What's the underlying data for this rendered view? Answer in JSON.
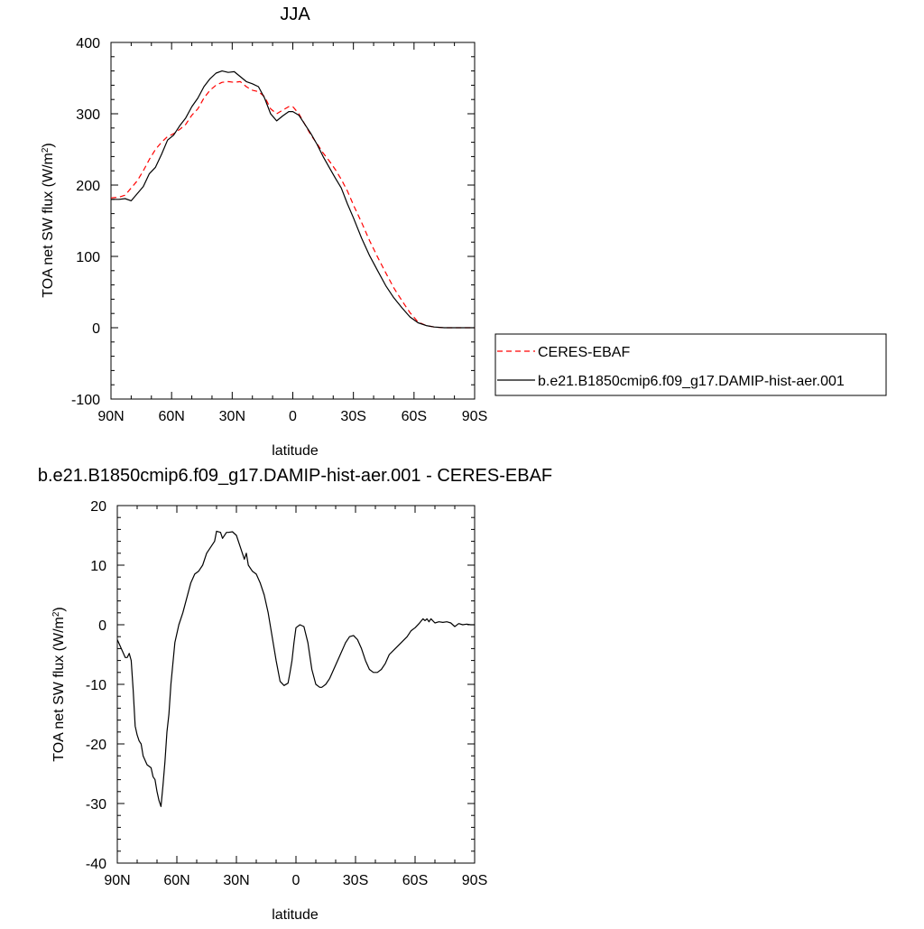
{
  "chart_data": [
    {
      "type": "line",
      "title": "JJA",
      "xlabel": "latitude",
      "ylabel": "TOA net SW flux (W/m²)",
      "ylabel_main": "TOA net SW flux (W/m",
      "ylabel_sup": "2",
      "ylabel_tail": ")",
      "xlim": [
        90,
        -90
      ],
      "ylim": [
        -100,
        400
      ],
      "xticks": [
        90,
        60,
        30,
        0,
        -30,
        -60,
        -90
      ],
      "xtick_labels": [
        "90N",
        "60N",
        "30N",
        "0",
        "30S",
        "60S",
        "90S"
      ],
      "yticks": [
        -100,
        0,
        100,
        200,
        300,
        400
      ],
      "ytick_labels": [
        "-100",
        "0",
        "100",
        "200",
        "300",
        "400"
      ],
      "grid": false,
      "legend_position": "right",
      "series": [
        {
          "name": "CERES-EBAF",
          "color": "#ff0000",
          "dash": "dashed",
          "x": [
            90,
            86,
            83,
            80,
            77,
            74,
            71,
            68,
            65,
            62,
            59,
            56,
            53,
            50,
            47,
            44,
            41,
            38,
            35,
            32,
            29,
            26,
            23,
            20,
            17,
            14,
            11,
            8,
            5,
            2,
            0,
            -3,
            -6,
            -9,
            -12,
            -15,
            -18,
            -21,
            -24,
            -27,
            -30,
            -34,
            -38,
            -42,
            -46,
            -50,
            -54,
            -58,
            -62,
            -66,
            -70,
            -75,
            -80,
            -85,
            -90
          ],
          "y": [
            182,
            183,
            186,
            196,
            206,
            220,
            236,
            250,
            260,
            268,
            272,
            278,
            285,
            298,
            307,
            322,
            333,
            340,
            344,
            345,
            344,
            345,
            338,
            333,
            331,
            324,
            307,
            300,
            305,
            310,
            310,
            300,
            285,
            270,
            258,
            245,
            234,
            222,
            208,
            192,
            172,
            148,
            122,
            99,
            77,
            56,
            38,
            21,
            8,
            3,
            1,
            0,
            0,
            0,
            0
          ]
        },
        {
          "name": "b.e21.B1850cmip6.f09_g17.DAMIP-hist-aer.001",
          "color": "#000000",
          "dash": "solid",
          "x": [
            90,
            86,
            83,
            80,
            77,
            74,
            71,
            68,
            65,
            62,
            59,
            56,
            53,
            50,
            47,
            44,
            41,
            38,
            35,
            32,
            29,
            26,
            23,
            20,
            17,
            14,
            11,
            8,
            5,
            2,
            0,
            -3,
            -6,
            -9,
            -12,
            -15,
            -18,
            -21,
            -24,
            -27,
            -30,
            -34,
            -38,
            -42,
            -46,
            -50,
            -54,
            -58,
            -62,
            -66,
            -70,
            -75,
            -80,
            -85,
            -90
          ],
          "y": [
            180,
            180,
            181,
            178,
            188,
            198,
            216,
            225,
            243,
            263,
            270,
            283,
            294,
            310,
            322,
            338,
            349,
            357,
            360,
            358,
            359,
            352,
            345,
            342,
            338,
            322,
            300,
            290,
            297,
            303,
            303,
            298,
            285,
            272,
            257,
            240,
            225,
            210,
            196,
            174,
            154,
            126,
            101,
            80,
            59,
            42,
            28,
            15,
            7,
            3,
            1,
            0,
            0,
            0,
            0
          ]
        }
      ]
    },
    {
      "type": "line",
      "title": "b.e21.B1850cmip6.f09_g17.DAMIP-hist-aer.001 - CERES-EBAF",
      "xlabel": "latitude",
      "ylabel": "TOA net SW flux (W/m²)",
      "ylabel_main": "TOA net SW flux (W/m",
      "ylabel_sup": "2",
      "ylabel_tail": ")",
      "xlim": [
        90,
        -90
      ],
      "ylim": [
        -40,
        20
      ],
      "xticks": [
        90,
        60,
        30,
        0,
        -30,
        -60,
        -90
      ],
      "xtick_labels": [
        "90N",
        "60N",
        "30N",
        "0",
        "30S",
        "60S",
        "90S"
      ],
      "yticks": [
        -40,
        -30,
        -20,
        -10,
        0,
        10,
        20
      ],
      "ytick_labels": [
        "-40",
        "-30",
        "-20",
        "-10",
        "0",
        "10",
        "20"
      ],
      "grid": false,
      "series": [
        {
          "color": "#000000",
          "dash": "solid",
          "x": [
            90,
            88,
            86,
            85,
            84,
            83,
            82,
            81,
            80,
            79,
            78,
            77,
            75,
            73,
            72,
            71,
            70,
            69,
            68,
            67,
            66,
            65,
            64,
            63,
            61,
            59,
            57,
            55,
            53,
            51,
            49,
            47,
            45,
            43,
            41,
            40,
            38,
            37,
            35,
            34,
            32,
            30,
            28,
            26,
            25,
            24,
            22,
            20,
            18,
            16,
            14,
            12,
            10,
            8,
            6,
            4,
            3,
            2,
            1,
            0,
            -2,
            -4,
            -6,
            -8,
            -10,
            -12,
            -13,
            -15,
            -17,
            -19,
            -21,
            -23,
            -25,
            -27,
            -29,
            -31,
            -33,
            -35,
            -37,
            -39,
            -41,
            -43,
            -45,
            -47,
            -50,
            -53,
            -56,
            -58,
            -60,
            -62,
            -63,
            -64,
            -65,
            -66,
            -67,
            -68,
            -70,
            -72,
            -74,
            -76,
            -78,
            -80,
            -82,
            -84,
            -86,
            -88,
            -90
          ],
          "y": [
            -2.5,
            -4,
            -5.5,
            -5.5,
            -4.8,
            -6,
            -11,
            -17,
            -18.5,
            -19.5,
            -20,
            -22,
            -23.5,
            -24,
            -25.5,
            -26,
            -28,
            -29.5,
            -30.5,
            -27,
            -23,
            -18,
            -15,
            -10,
            -3,
            0,
            2,
            4.5,
            7,
            8.5,
            9,
            10,
            12,
            13,
            14,
            15.7,
            15.5,
            14.5,
            15.5,
            15.5,
            15.6,
            15,
            13,
            11,
            12,
            10,
            9,
            8.5,
            7,
            5,
            2,
            -2,
            -6,
            -9.5,
            -10.2,
            -9.8,
            -8,
            -6,
            -3,
            -0.5,
            0,
            -0.3,
            -3,
            -7.5,
            -10,
            -10.5,
            -10.5,
            -10,
            -9,
            -7.5,
            -6,
            -4.5,
            -3,
            -2,
            -1.8,
            -2.5,
            -4,
            -6,
            -7.5,
            -8,
            -8,
            -7.5,
            -6.5,
            -5,
            -4,
            -3,
            -2,
            -1,
            -0.5,
            0.2,
            0.6,
            1,
            0.7,
            1,
            0.5,
            1,
            0.3,
            0.5,
            0.4,
            0.5,
            0.3,
            -0.3,
            0.2,
            0,
            0.1,
            0,
            0
          ]
        }
      ]
    }
  ],
  "legend": {
    "items": [
      {
        "label": "CERES-EBAF",
        "color": "#ff0000",
        "dash": "dashed"
      },
      {
        "label": "b.e21.B1850cmip6.f09_g17.DAMIP-hist-aer.001",
        "color": "#000000",
        "dash": "solid"
      }
    ]
  }
}
